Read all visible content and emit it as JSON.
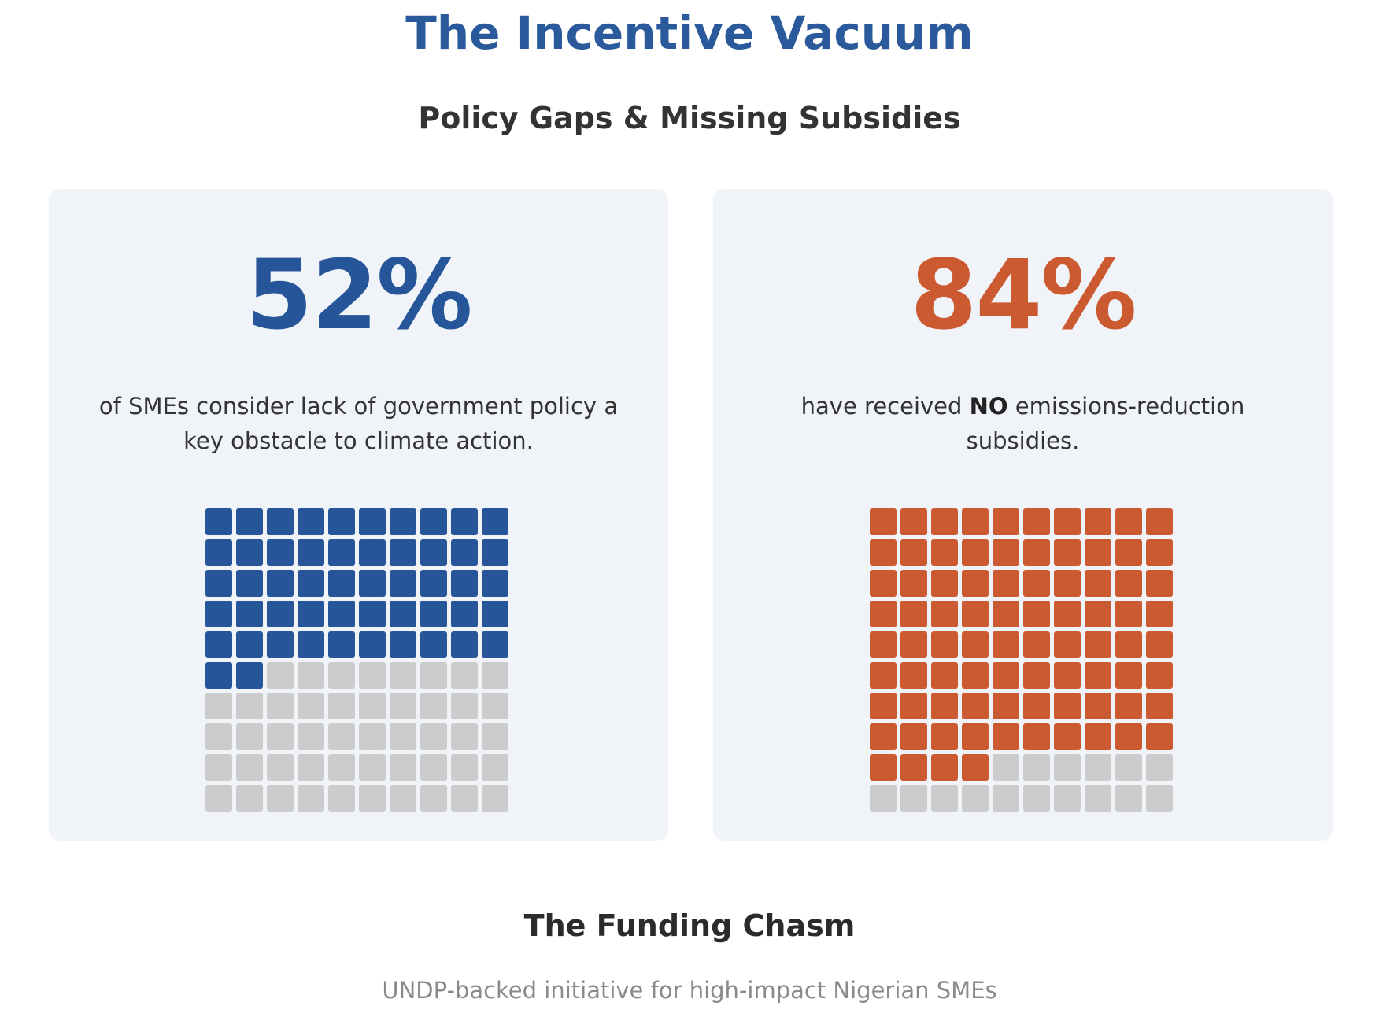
{
  "title": "The Incentive Vacuum",
  "subtitle": "Policy Gaps & Missing Subsidies",
  "colors": {
    "title": "#2a5a9c",
    "card_bg": "#f0f3f8",
    "empty": "#cccccc"
  },
  "cards": [
    {
      "stat": "52%",
      "caption_before": "of SMEs consider lack of government policy a key obstacle to climate action.",
      "caption_bold": "",
      "caption_after": "",
      "color": "#265699"
    },
    {
      "stat": "84%",
      "caption_before": "have received ",
      "caption_bold": "NO",
      "caption_after": " emissions-reduction subsidies.",
      "color": "#cc5a31"
    }
  ],
  "chart_data": [
    {
      "type": "waffle",
      "grid": [
        10,
        10
      ],
      "filled": 52,
      "total": 100,
      "value_percent": 52
    },
    {
      "type": "waffle",
      "grid": [
        10,
        10
      ],
      "filled": 84,
      "total": 100,
      "value_percent": 84
    }
  ],
  "section": {
    "title": "The Funding Chasm",
    "subtitle": "UNDP-backed initiative for high-impact Nigerian SMEs"
  }
}
